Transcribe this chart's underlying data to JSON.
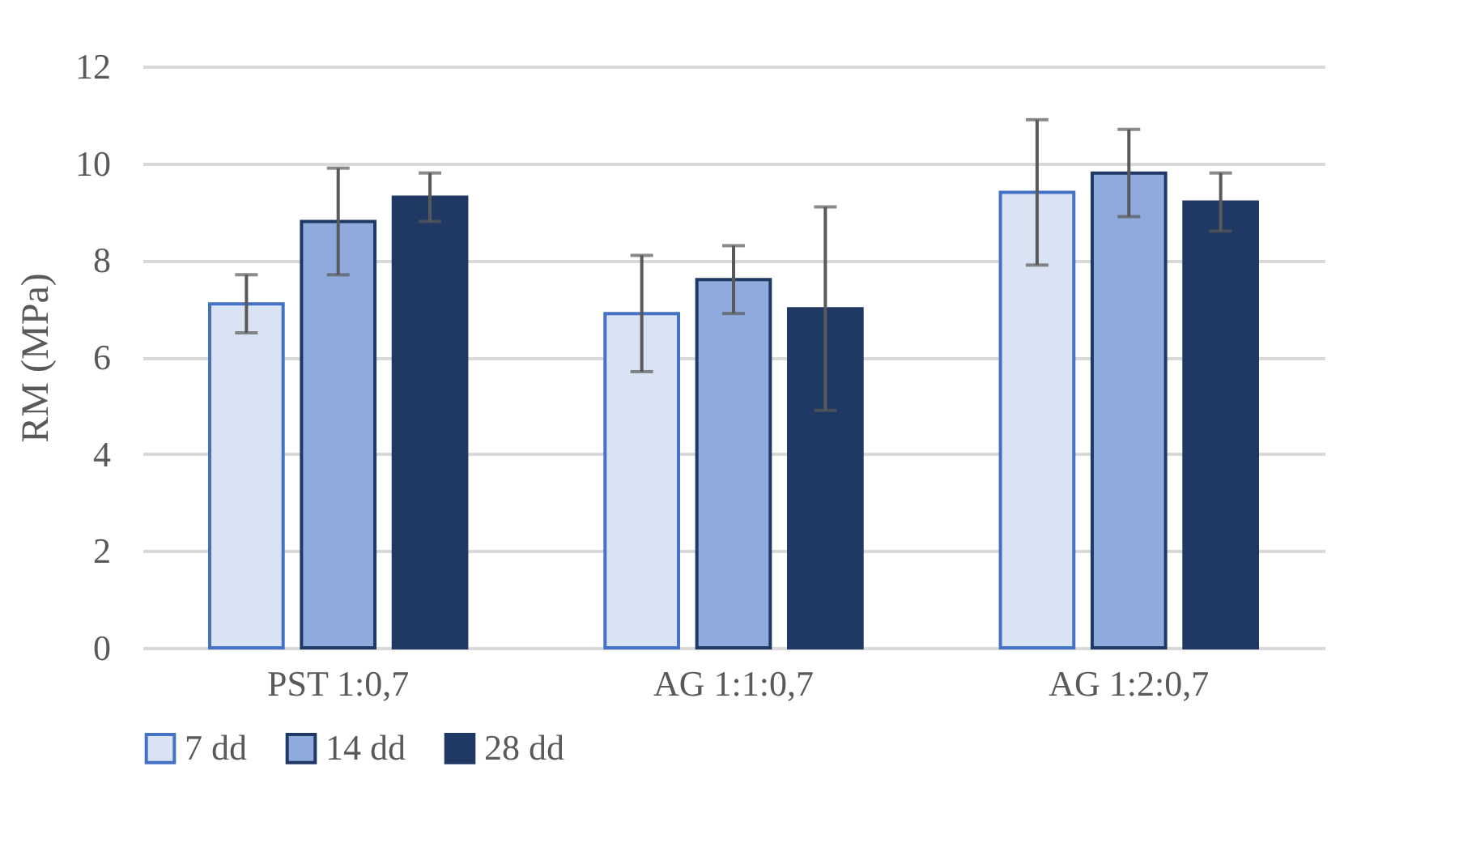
{
  "chart_data": {
    "type": "bar",
    "ylabel": "RM (MPa)",
    "categories": [
      "PST 1:0,7",
      "AG 1:1:0,7",
      "AG 1:2:0,7"
    ],
    "series": [
      {
        "name": "7 dd",
        "color": "#dae3f3",
        "values": [
          7.1,
          6.9,
          9.4
        ],
        "errors": [
          0.6,
          1.2,
          1.5
        ]
      },
      {
        "name": "14 dd",
        "color": "#8faadc",
        "values": [
          8.8,
          7.6,
          9.8
        ],
        "errors": [
          1.1,
          0.7,
          0.9
        ]
      },
      {
        "name": "28 dd",
        "color": "#203864",
        "values": [
          9.3,
          7.0,
          9.2
        ],
        "errors": [
          0.5,
          2.1,
          0.6
        ]
      }
    ],
    "ylim": [
      0,
      12
    ],
    "yticks": [
      0,
      2,
      4,
      6,
      8,
      10,
      12
    ],
    "grid": "y",
    "legend": "bottom"
  }
}
